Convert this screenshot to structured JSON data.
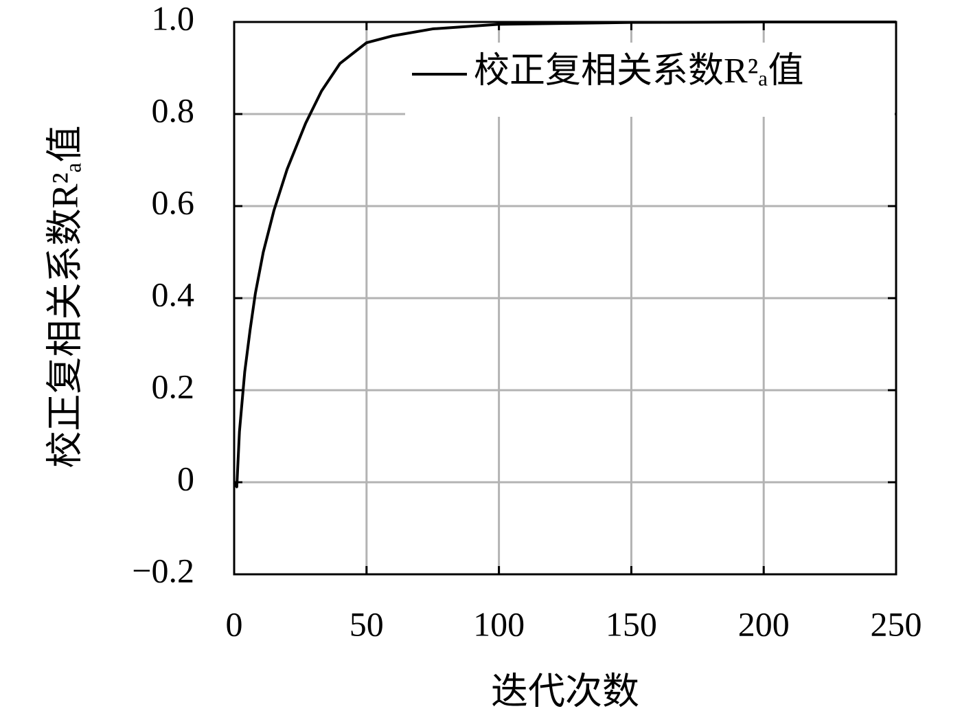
{
  "chart_data": {
    "type": "line",
    "xlabel": "迭代次数",
    "ylabel": "校正复相关系数R²ₐ值",
    "x": [
      0,
      1,
      2,
      4,
      6,
      8,
      11,
      15,
      20,
      27,
      33,
      40,
      50,
      60,
      75,
      100,
      150,
      200,
      250
    ],
    "series": [
      {
        "name": "校正复相关系数R²ₐ值",
        "color": "#000000",
        "values": [
          0,
          -0.01,
          0.11,
          0.24,
          0.33,
          0.41,
          0.5,
          0.59,
          0.68,
          0.78,
          0.85,
          0.91,
          0.955,
          0.97,
          0.985,
          0.995,
          0.999,
          1.0,
          1.0
        ]
      }
    ],
    "xlim": [
      0,
      250
    ],
    "xticks": [
      0,
      50,
      100,
      150,
      200,
      250
    ],
    "ylim": [
      -0.2,
      1.0
    ],
    "yticks": [
      {
        "value": -0.2,
        "label": "−0.2"
      },
      0,
      0.2,
      0.4,
      0.6,
      0.8,
      {
        "value": 1.0,
        "label": "1.0"
      }
    ],
    "grid": true,
    "legend": "upper right"
  }
}
